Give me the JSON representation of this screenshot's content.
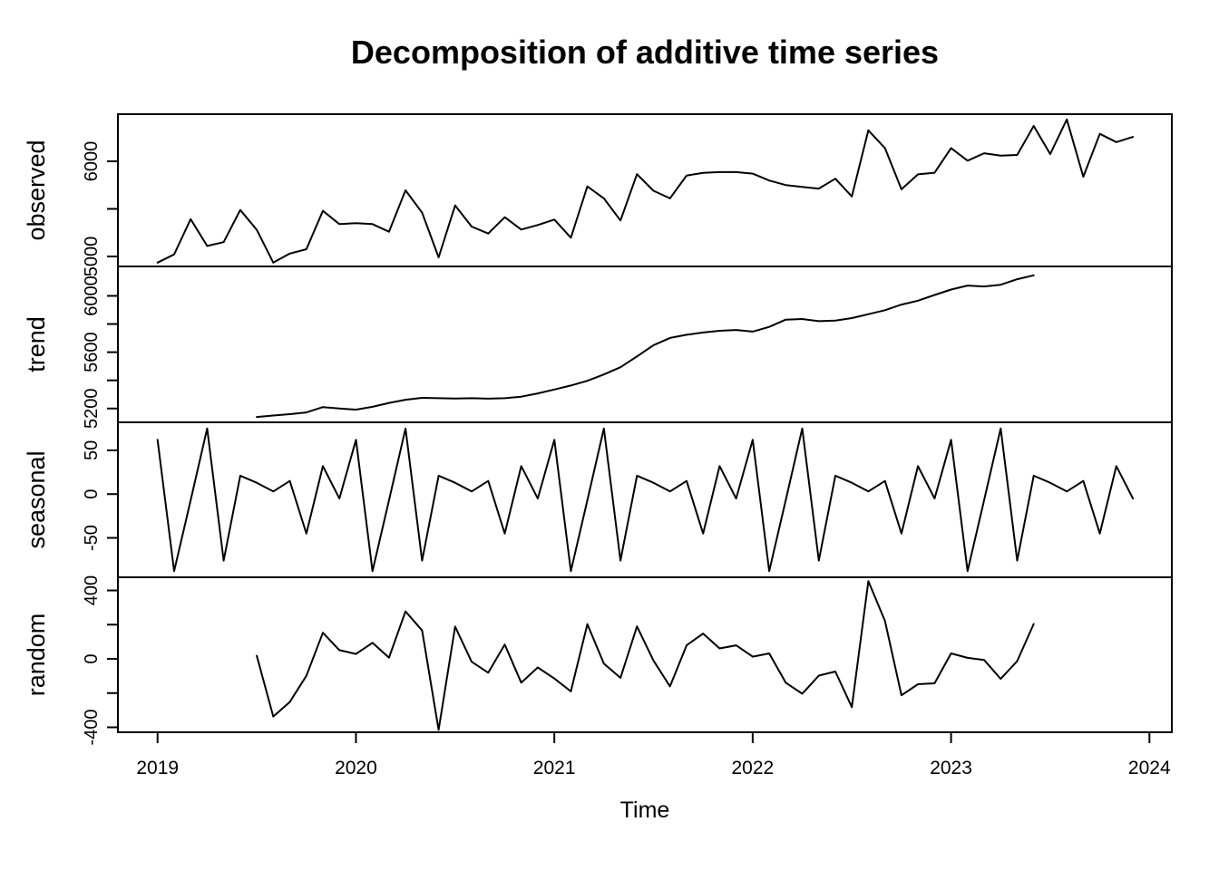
{
  "background": "#ffffff",
  "chart_data": {
    "type": "line",
    "title": "Decomposition of additive time series",
    "xlabel": "Time",
    "line_color": "#000000",
    "grid": false,
    "legend": "none",
    "frequency": 12,
    "xlim": [
      2018.8,
      2024.113
    ],
    "x_ticks": [
      2019,
      2020,
      2021,
      2022,
      2023,
      2024
    ],
    "x_tick_labels": [
      "2019",
      "2020",
      "2021",
      "2022",
      "2023",
      "2024"
    ],
    "panels": [
      {
        "name": "observed",
        "start": 2019.0,
        "ylim": [
          4895,
          6495
        ],
        "yticks": [
          {
            "v": 5000,
            "label": "5000"
          },
          {
            "v": 5500
          },
          {
            "v": 6000,
            "label": "6000"
          }
        ],
        "values": [
          4935,
          5022,
          5392,
          5110,
          5150,
          5488,
          5280,
          4935,
          5030,
          5076,
          5480,
          5340,
          5350,
          5340,
          5260,
          5695,
          5460,
          4990,
          5536,
          5314,
          5241,
          5412,
          5283,
          5330,
          5387,
          5197,
          5736,
          5610,
          5378,
          5865,
          5690,
          5610,
          5850,
          5878,
          5886,
          5886,
          5870,
          5798,
          5750,
          5730,
          5713,
          5817,
          5630,
          6325,
          6139,
          5705,
          5863,
          5880,
          6139,
          6006,
          6085,
          6060,
          6066,
          6371,
          6076,
          6440,
          5838,
          6288,
          6202,
          6256
        ]
      },
      {
        "name": "trend",
        "start": 2019.5,
        "ylim": [
          5102,
          6209
        ],
        "yticks": [
          {
            "v": 5200,
            "label": "5200"
          },
          {
            "v": 5400
          },
          {
            "v": 5600,
            "label": "5600"
          },
          {
            "v": 5800
          },
          {
            "v": 6000,
            "label": "6000"
          }
        ],
        "values": [
          5140,
          5150,
          5160,
          5172,
          5210,
          5200,
          5192,
          5212,
          5240,
          5262,
          5276,
          5273,
          5271,
          5273,
          5270,
          5273,
          5284,
          5307,
          5335,
          5363,
          5397,
          5442,
          5493,
          5570,
          5650,
          5701,
          5724,
          5740,
          5752,
          5758,
          5746,
          5780,
          5831,
          5836,
          5820,
          5825,
          5842,
          5870,
          5898,
          5938,
          5966,
          6006,
          6045,
          6073,
          6067,
          6079,
          6118,
          6146
        ]
      },
      {
        "name": "seasonal",
        "start": 2019.0,
        "ylim": [
          -95,
          82
        ],
        "seasonal_cycle_jan_to_dec": [
          62,
          -88,
          -7,
          75,
          -76,
          21,
          13,
          3,
          15,
          -45,
          32,
          -5
        ],
        "yticks": [
          {
            "v": -50,
            "label": "-50"
          },
          {
            "v": 0,
            "label": "0"
          },
          {
            "v": 50,
            "label": "50"
          }
        ],
        "values": [
          62,
          -88,
          -7,
          75,
          -76,
          21,
          13,
          3,
          15,
          -45,
          32,
          -5,
          62,
          -88,
          -7,
          75,
          -76,
          21,
          13,
          3,
          15,
          -45,
          32,
          -5,
          62,
          -88,
          -7,
          75,
          -76,
          21,
          13,
          3,
          15,
          -45,
          32,
          -5,
          62,
          -88,
          -7,
          75,
          -76,
          21,
          13,
          3,
          15,
          -45,
          32,
          -5,
          62,
          -88,
          -7,
          75,
          -76,
          21,
          13,
          3,
          15,
          -45,
          32,
          -5
        ]
      },
      {
        "name": "random",
        "start": 2019.5,
        "ylim": [
          -429,
          477
        ],
        "yticks": [
          {
            "v": -400,
            "label": "-400"
          },
          {
            "v": -200
          },
          {
            "v": 0,
            "label": "0"
          },
          {
            "v": 200
          },
          {
            "v": 400,
            "label": "400"
          }
        ],
        "values": [
          18,
          -337,
          -252,
          -99,
          153,
          51,
          29,
          94,
          7,
          278,
          166,
          -415,
          189,
          -17,
          -81,
          84,
          -139,
          -50,
          -115,
          -190,
          203,
          -28,
          -111,
          190,
          -10,
          -161,
          79,
          148,
          61,
          79,
          13,
          32,
          -139,
          -204,
          -98,
          -74,
          -282,
          454,
          222,
          -213,
          -148,
          -143,
          32,
          6,
          -6,
          -117,
          -13,
          204
        ]
      }
    ]
  }
}
